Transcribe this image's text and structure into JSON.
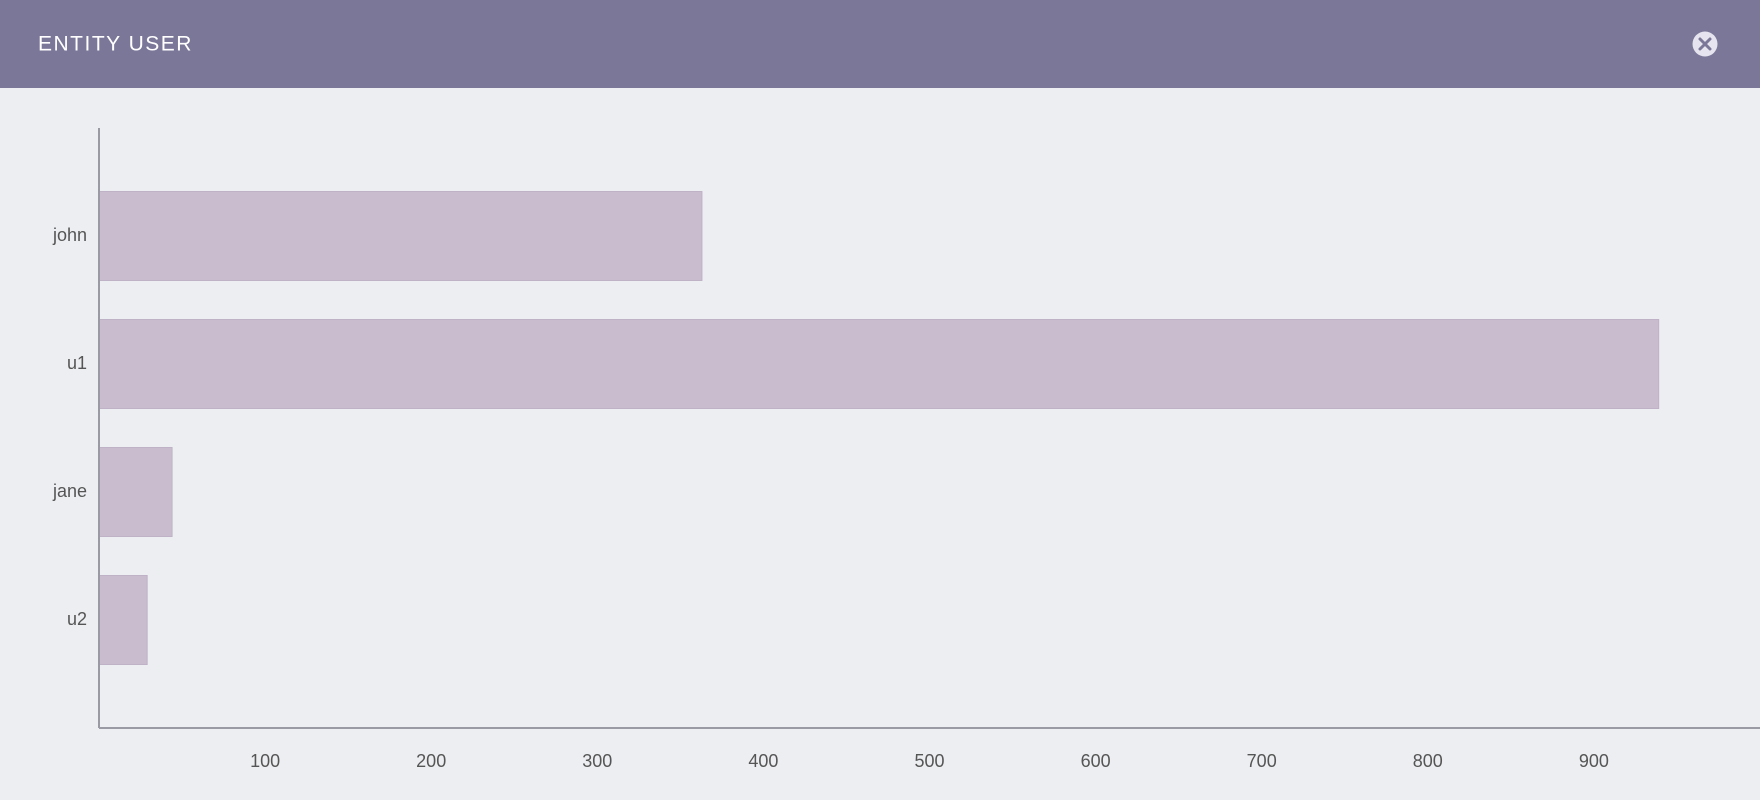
{
  "header": {
    "title": "ENTITY USER"
  },
  "chart_data": {
    "type": "bar",
    "orientation": "horizontal",
    "categories": [
      "john",
      "u1",
      "jane",
      "u2"
    ],
    "values": [
      363,
      939,
      44,
      29
    ],
    "color": "#c9bccf",
    "xlim": [
      0,
      1000
    ],
    "xticks": [
      100,
      200,
      300,
      400,
      500,
      600,
      700,
      800,
      900
    ]
  }
}
